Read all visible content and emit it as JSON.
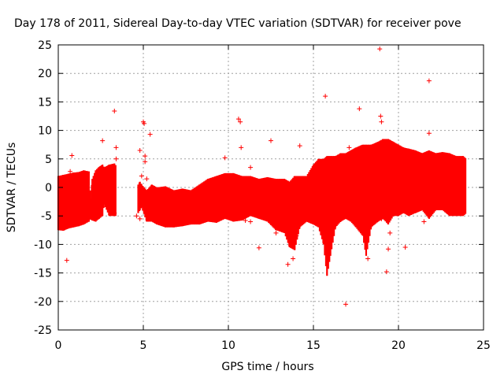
{
  "colors": {
    "data": "#ff0000",
    "grid": "#a0a0a0",
    "axis": "#000000",
    "background": "#ffffff"
  },
  "chart_data": {
    "type": "scatter",
    "title": "Day 178 of 2011, Sidereal Day-to-day VTEC variation (SDTVAR) for receiver pove",
    "xlabel": "GPS time / hours",
    "ylabel": "SDTVAR / TECUs",
    "xlim": [
      0,
      25
    ],
    "ylim": [
      -25,
      25
    ],
    "xticks": [
      0,
      5,
      10,
      15,
      20,
      25
    ],
    "yticks": [
      -25,
      -20,
      -15,
      -10,
      -5,
      0,
      5,
      10,
      15,
      20,
      25
    ],
    "grid": true,
    "marker": "+",
    "series": [
      {
        "name": "SDTVAR",
        "band": [
          [
            0.0,
            -7.5,
            2.0
          ],
          [
            0.3,
            -7.6,
            2.2
          ],
          [
            0.6,
            -7.2,
            2.4
          ],
          [
            0.9,
            -7.0,
            2.6
          ],
          [
            1.2,
            -6.8,
            2.7
          ],
          [
            1.5,
            -6.5,
            3.0
          ],
          [
            1.8,
            -6.0,
            2.8
          ],
          [
            1.9,
            -5.5,
            -2.0
          ],
          [
            2.0,
            -5.8,
            1.5
          ],
          [
            2.2,
            -6.0,
            3.0
          ],
          [
            2.4,
            -5.5,
            3.6
          ],
          [
            2.6,
            -5.0,
            4.0
          ],
          [
            2.7,
            -3.0,
            3.5
          ],
          [
            3.0,
            -5.0,
            4.0
          ],
          [
            3.3,
            -5.0,
            4.2
          ],
          [
            3.4,
            -5.0,
            3.8
          ],
          [
            4.7,
            -4.5,
            0.5
          ],
          [
            4.8,
            -4.0,
            1.0
          ],
          [
            4.9,
            -3.5,
            0.5
          ],
          [
            5.2,
            -6.0,
            -0.5
          ],
          [
            5.5,
            -6.0,
            0.5
          ],
          [
            5.8,
            -6.5,
            0.0
          ],
          [
            6.3,
            -7.0,
            0.2
          ],
          [
            6.8,
            -7.0,
            -0.5
          ],
          [
            7.3,
            -6.8,
            -0.2
          ],
          [
            7.8,
            -6.5,
            -0.5
          ],
          [
            8.3,
            -6.5,
            0.5
          ],
          [
            8.8,
            -6.0,
            1.5
          ],
          [
            9.3,
            -6.2,
            2.0
          ],
          [
            9.8,
            -5.5,
            2.5
          ],
          [
            10.3,
            -6.0,
            2.5
          ],
          [
            10.8,
            -5.8,
            2.0
          ],
          [
            11.3,
            -5.0,
            2.0
          ],
          [
            11.8,
            -5.5,
            1.5
          ],
          [
            12.3,
            -6.0,
            1.8
          ],
          [
            12.8,
            -7.5,
            1.5
          ],
          [
            13.3,
            -8.0,
            1.5
          ],
          [
            13.6,
            -10.5,
            1.0
          ],
          [
            13.9,
            -11.0,
            2.0
          ],
          [
            14.2,
            -7.0,
            2.0
          ],
          [
            14.6,
            -6.0,
            2.0
          ],
          [
            15.0,
            -6.5,
            4.0
          ],
          [
            15.3,
            -7.0,
            5.0
          ],
          [
            15.6,
            -10.0,
            5.0
          ],
          [
            15.8,
            -15.5,
            5.5
          ],
          [
            16.0,
            -12.0,
            5.5
          ],
          [
            16.3,
            -7.0,
            5.5
          ],
          [
            16.6,
            -6.0,
            6.0
          ],
          [
            16.9,
            -5.5,
            6.0
          ],
          [
            17.2,
            -6.0,
            6.5
          ],
          [
            17.5,
            -7.0,
            7.0
          ],
          [
            17.9,
            -8.5,
            7.5
          ],
          [
            18.1,
            -12.0,
            7.5
          ],
          [
            18.4,
            -7.0,
            7.5
          ],
          [
            18.8,
            -6.0,
            8.0
          ],
          [
            19.1,
            -5.5,
            8.5
          ],
          [
            19.4,
            -6.5,
            8.5
          ],
          [
            19.7,
            -5.0,
            8.0
          ],
          [
            20.0,
            -5.0,
            7.5
          ],
          [
            20.3,
            -4.5,
            7.0
          ],
          [
            20.6,
            -5.0,
            6.8
          ],
          [
            21.0,
            -4.5,
            6.5
          ],
          [
            21.4,
            -4.0,
            6.0
          ],
          [
            21.8,
            -5.5,
            6.5
          ],
          [
            22.2,
            -4.0,
            6.0
          ],
          [
            22.6,
            -4.0,
            6.2
          ],
          [
            23.0,
            -5.0,
            6.0
          ],
          [
            23.4,
            -5.0,
            5.5
          ],
          [
            23.8,
            -5.0,
            5.5
          ],
          [
            24.0,
            -4.5,
            5.0
          ]
        ],
        "outliers": [
          [
            0.5,
            -12.8
          ],
          [
            0.7,
            2.8
          ],
          [
            0.8,
            5.6
          ],
          [
            2.6,
            8.2
          ],
          [
            3.3,
            13.4
          ],
          [
            3.4,
            7.0
          ],
          [
            3.4,
            5.0
          ],
          [
            3.2,
            -3.5
          ],
          [
            3.3,
            -4.5
          ],
          [
            4.6,
            -5.0
          ],
          [
            4.8,
            6.5
          ],
          [
            4.9,
            2.0
          ],
          [
            5.0,
            11.5
          ],
          [
            5.05,
            11.2
          ],
          [
            5.1,
            5.5
          ],
          [
            5.1,
            4.5
          ],
          [
            5.2,
            1.5
          ],
          [
            5.4,
            9.3
          ],
          [
            4.8,
            -5.5
          ],
          [
            9.8,
            5.2
          ],
          [
            10.6,
            12.0
          ],
          [
            10.7,
            11.5
          ],
          [
            10.75,
            7.0
          ],
          [
            11.3,
            3.5
          ],
          [
            11.0,
            -5.8
          ],
          [
            11.3,
            -6.0
          ],
          [
            11.8,
            -10.6
          ],
          [
            12.5,
            8.2
          ],
          [
            12.8,
            -8.0
          ],
          [
            13.5,
            -13.5
          ],
          [
            13.8,
            -12.5
          ],
          [
            14.2,
            7.3
          ],
          [
            14.0,
            -8.5
          ],
          [
            15.7,
            16.0
          ],
          [
            15.4,
            -5.0
          ],
          [
            16.5,
            5.0
          ],
          [
            16.9,
            -20.5
          ],
          [
            17.1,
            7.0
          ],
          [
            17.7,
            13.8
          ],
          [
            18.2,
            -12.5
          ],
          [
            18.9,
            24.3
          ],
          [
            18.95,
            12.5
          ],
          [
            19.0,
            11.5
          ],
          [
            19.1,
            -4.0
          ],
          [
            19.3,
            -14.8
          ],
          [
            19.4,
            -10.8
          ],
          [
            19.5,
            -8.0
          ],
          [
            20.4,
            -10.5
          ],
          [
            21.8,
            18.7
          ],
          [
            21.8,
            9.5
          ],
          [
            21.5,
            -6.0
          ],
          [
            19.0,
            -5.5
          ]
        ]
      }
    ]
  }
}
